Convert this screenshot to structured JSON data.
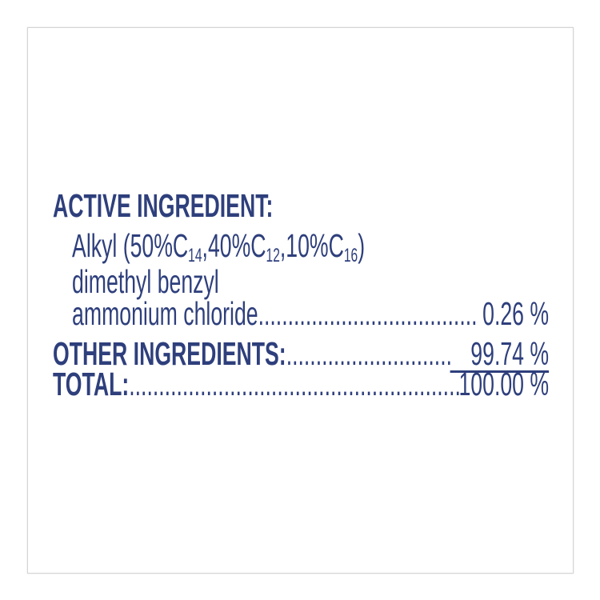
{
  "label": {
    "active_heading": "ACTIVE INGREDIENT:",
    "alkyl_prefix": "Alkyl (50%C",
    "sub1": "14",
    "mid1": ",40%C",
    "sub2": "12",
    "mid2": ",10%C",
    "sub3": "16",
    "close": ")",
    "line2": "dimethyl benzyl",
    "line3": "ammonium chloride",
    "active_value": "0.26 %",
    "other_label": "OTHER INGREDIENTS:",
    "other_value": "99.74 %",
    "total_label": "TOTAL:",
    "total_value": "100.00 %"
  },
  "colors": {
    "text": "#2e3f7c",
    "border": "#d4d4d4"
  }
}
